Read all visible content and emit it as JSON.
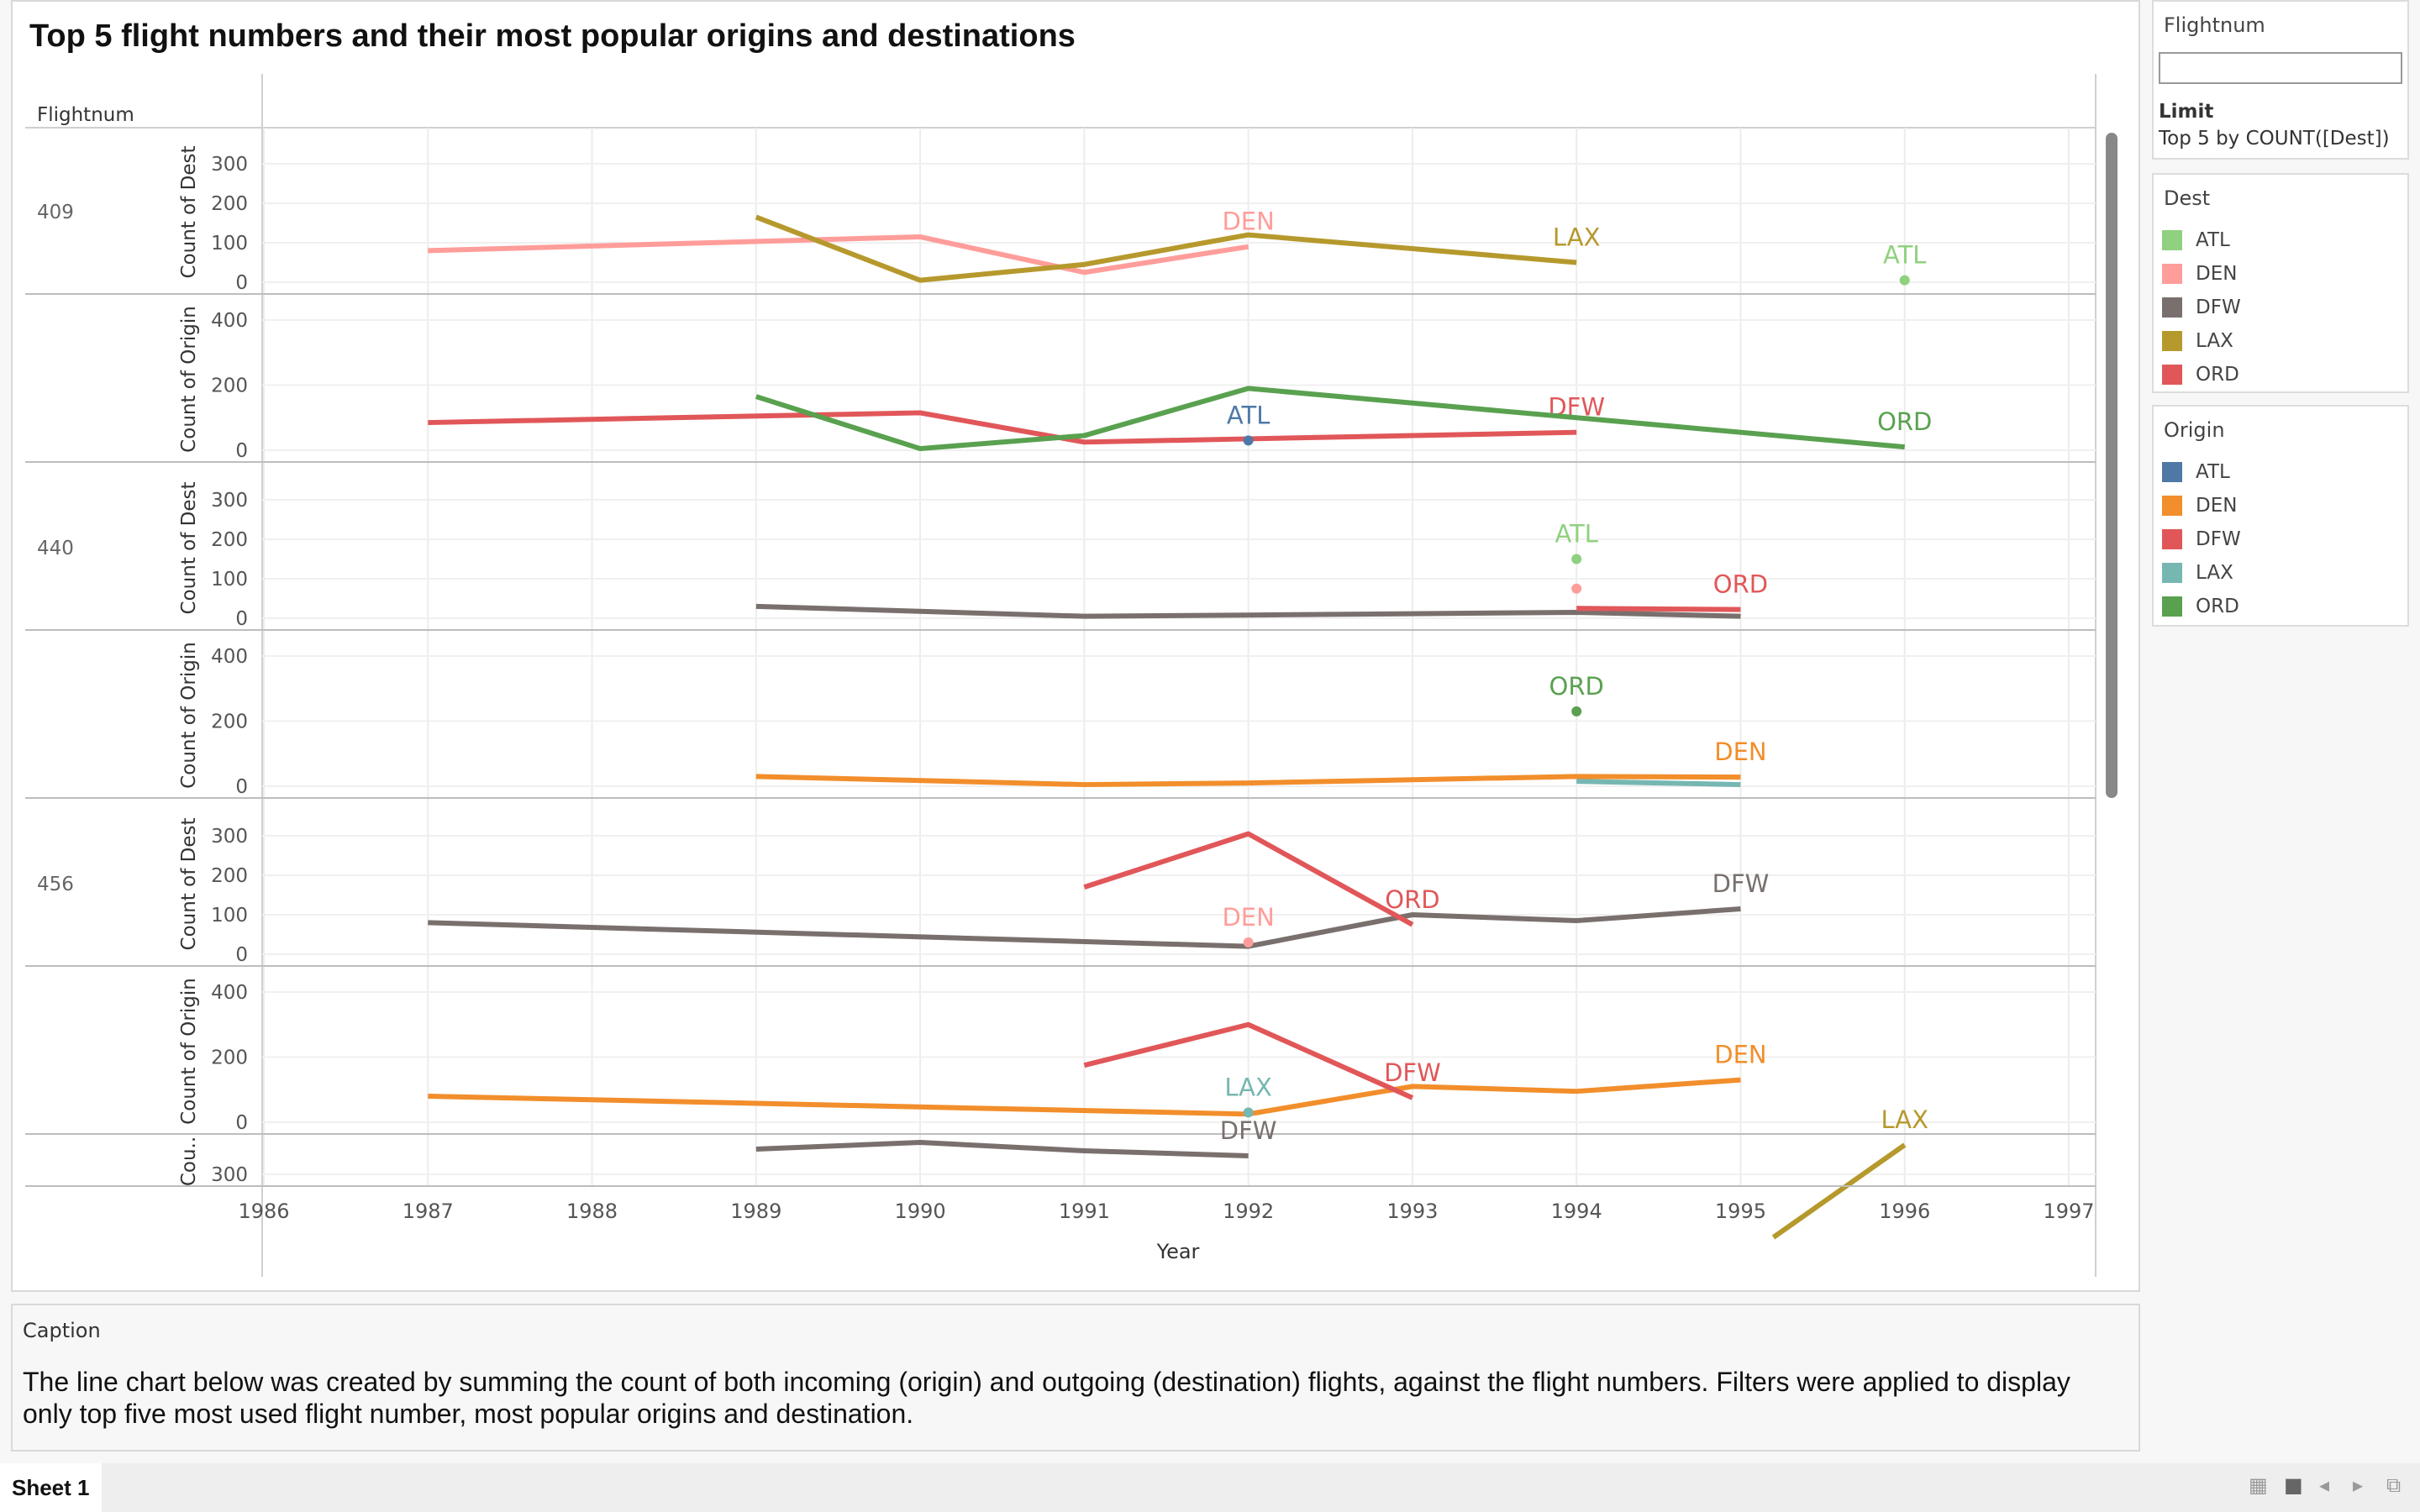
{
  "title": "Top 5 flight numbers and their most popular origins and destinations",
  "row_header": "Flightnum",
  "sidebar": {
    "filter_title": "Flightnum",
    "filter_value": "",
    "limit_label": "Limit",
    "limit_text": "Top 5 by COUNT([Dest])",
    "dest_title": "Dest",
    "origin_title": "Origin"
  },
  "legend": {
    "dest": [
      {
        "label": "ATL",
        "color": "#8fd17e"
      },
      {
        "label": "DEN",
        "color": "#ff9d9a"
      },
      {
        "label": "DFW",
        "color": "#79706e"
      },
      {
        "label": "LAX",
        "color": "#b6992d"
      },
      {
        "label": "ORD",
        "color": "#e15759"
      }
    ],
    "origin": [
      {
        "label": "ATL",
        "color": "#4e79a7"
      },
      {
        "label": "DEN",
        "color": "#f28e2b"
      },
      {
        "label": "DFW",
        "color": "#e15759"
      },
      {
        "label": "LAX",
        "color": "#76b7b2"
      },
      {
        "label": "ORD",
        "color": "#59a14f"
      }
    ]
  },
  "caption": {
    "title": "Caption",
    "text": "The line chart below was created by summing the count of both incoming (origin) and outgoing (destination) flights, against the flight numbers. Filters were applied to display only top five most used flight number, most popular origins and destination."
  },
  "tab": "Sheet 1",
  "chart_data": {
    "type": "line",
    "xlabel": "Year",
    "xlim": [
      1986,
      1997
    ],
    "x_ticks": [
      1986,
      1987,
      1988,
      1989,
      1990,
      1991,
      1992,
      1993,
      1994,
      1995,
      1996,
      1997
    ],
    "groups": [
      {
        "flightnum": "409",
        "panels": [
          {
            "measure": "Count of Dest",
            "ylim": [
              0,
              350
            ],
            "yticks": [
              0,
              100,
              200,
              300
            ],
            "series": [
              {
                "key": "DEN",
                "points": [
                  [
                    1987,
                    80
                  ],
                  [
                    1990,
                    115
                  ],
                  [
                    1991,
                    25
                  ],
                  [
                    1992,
                    90
                  ]
                ],
                "label": "DEN"
              },
              {
                "key": "LAX",
                "points": [
                  [
                    1989,
                    165
                  ],
                  [
                    1990,
                    5
                  ],
                  [
                    1991,
                    45
                  ],
                  [
                    1992,
                    120
                  ],
                  [
                    1994,
                    50
                  ]
                ],
                "label": "LAX"
              },
              {
                "key": "ATL",
                "points": [
                  [
                    1996,
                    5
                  ]
                ],
                "label": "ATL"
              }
            ]
          },
          {
            "measure": "Count of Origin",
            "ylim": [
              0,
              420
            ],
            "yticks": [
              0,
              200,
              400
            ],
            "series": [
              {
                "key": "DFW",
                "points": [
                  [
                    1987,
                    85
                  ],
                  [
                    1990,
                    115
                  ],
                  [
                    1991,
                    25
                  ],
                  [
                    1992,
                    35
                  ],
                  [
                    1994,
                    55
                  ]
                ],
                "label": "DFW"
              },
              {
                "key": "ORD",
                "points": [
                  [
                    1989,
                    165
                  ],
                  [
                    1990,
                    5
                  ],
                  [
                    1991,
                    45
                  ],
                  [
                    1992,
                    190
                  ],
                  [
                    1996,
                    10
                  ]
                ],
                "label": "ORD"
              },
              {
                "key": "ATL",
                "points": [
                  [
                    1992,
                    30
                  ]
                ],
                "label": "ATL"
              }
            ]
          }
        ]
      },
      {
        "flightnum": "440",
        "panels": [
          {
            "measure": "Count of Dest",
            "ylim": [
              0,
              350
            ],
            "yticks": [
              0,
              100,
              200,
              300
            ],
            "series": [
              {
                "key": "DFW",
                "points": [
                  [
                    1989,
                    30
                  ],
                  [
                    1991,
                    5
                  ],
                  [
                    1992,
                    8
                  ],
                  [
                    1994,
                    15
                  ],
                  [
                    1995,
                    5
                  ]
                ],
                "label": ""
              },
              {
                "key": "ORD",
                "points": [
                  [
                    1994,
                    25
                  ],
                  [
                    1995,
                    22
                  ]
                ],
                "label": "ORD"
              },
              {
                "key": "ATL",
                "points": [
                  [
                    1994,
                    150
                  ]
                ],
                "label": "ATL"
              },
              {
                "key": "DEN",
                "points": [
                  [
                    1994,
                    75
                  ]
                ],
                "label": ""
              }
            ]
          },
          {
            "measure": "Count of Origin",
            "ylim": [
              0,
              420
            ],
            "yticks": [
              0,
              200,
              400
            ],
            "series": [
              {
                "key": "DEN",
                "points": [
                  [
                    1989,
                    30
                  ],
                  [
                    1991,
                    5
                  ],
                  [
                    1992,
                    10
                  ],
                  [
                    1994,
                    30
                  ],
                  [
                    1995,
                    28
                  ]
                ],
                "label": "DEN"
              },
              {
                "key": "LAX",
                "points": [
                  [
                    1994,
                    15
                  ],
                  [
                    1995,
                    5
                  ]
                ],
                "label": ""
              },
              {
                "key": "ORD",
                "points": [
                  [
                    1994,
                    230
                  ]
                ],
                "label": "ORD"
              }
            ]
          }
        ]
      },
      {
        "flightnum": "456",
        "panels": [
          {
            "measure": "Count of Dest",
            "ylim": [
              0,
              350
            ],
            "yticks": [
              0,
              100,
              200,
              300
            ],
            "series": [
              {
                "key": "DFW",
                "points": [
                  [
                    1987,
                    80
                  ],
                  [
                    1992,
                    20
                  ],
                  [
                    1993,
                    100
                  ],
                  [
                    1994,
                    85
                  ],
                  [
                    1995,
                    115
                  ]
                ],
                "label": "DFW"
              },
              {
                "key": "ORD",
                "points": [
                  [
                    1991,
                    170
                  ],
                  [
                    1992,
                    305
                  ],
                  [
                    1993,
                    75
                  ]
                ],
                "label": "ORD"
              },
              {
                "key": "DEN",
                "points": [
                  [
                    1992,
                    30
                  ]
                ],
                "label": "DEN"
              }
            ]
          },
          {
            "measure": "Count of Origin",
            "ylim": [
              0,
              420
            ],
            "yticks": [
              0,
              200,
              400
            ],
            "series": [
              {
                "key": "DEN",
                "points": [
                  [
                    1987,
                    80
                  ],
                  [
                    1992,
                    25
                  ],
                  [
                    1993,
                    110
                  ],
                  [
                    1994,
                    95
                  ],
                  [
                    1995,
                    130
                  ]
                ],
                "label": "DEN"
              },
              {
                "key": "DFW",
                "points": [
                  [
                    1991,
                    175
                  ],
                  [
                    1992,
                    300
                  ],
                  [
                    1993,
                    75
                  ]
                ],
                "label": "DFW"
              },
              {
                "key": "LAX",
                "points": [
                  [
                    1992,
                    30
                  ]
                ],
                "label": "LAX"
              }
            ]
          }
        ]
      },
      {
        "flightnum": "",
        "panels": [
          {
            "measure": "Cou..",
            "ylim": [
              230,
              350
            ],
            "yticks": [
              300
            ],
            "series": [
              {
                "key": "DFW",
                "points": [
                  [
                    1989,
                    330
                  ],
                  [
                    1990,
                    338
                  ],
                  [
                    1991,
                    328
                  ],
                  [
                    1992,
                    322
                  ]
                ],
                "label": "DFW"
              },
              {
                "key": "LAX",
                "points": [
                  [
                    1995.2,
                    225
                  ],
                  [
                    1996,
                    335
                  ]
                ],
                "label": "LAX"
              }
            ]
          }
        ]
      }
    ]
  }
}
